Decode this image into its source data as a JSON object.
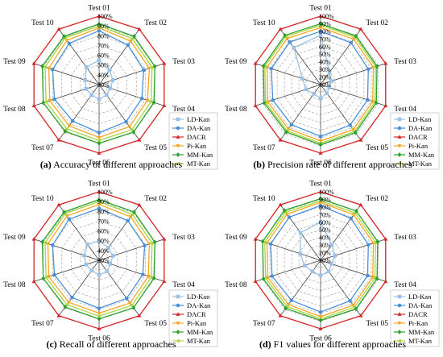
{
  "chart_data": [
    {
      "type": "radar",
      "panel": "a",
      "caption_letter": "(a)",
      "caption_text": " Accuracy of different approaches",
      "categories": [
        "Test 01",
        "Test 02",
        "Test 03",
        "Test 04",
        "Test 05",
        "Test 06",
        "Test 07",
        "Test 08",
        "Test 09",
        "Test 10"
      ],
      "ticks": [
        "30%",
        "40%",
        "50%",
        "60%",
        "70%",
        "80%",
        "90%",
        "100%"
      ],
      "range": [
        30,
        100
      ],
      "series": [
        {
          "name": "LD-Kan",
          "values": [
            55,
            48,
            45,
            42,
            43,
            45,
            43,
            44,
            45,
            52
          ]
        },
        {
          "name": "DA-Kan",
          "values": [
            85,
            80,
            78,
            76,
            77,
            79,
            76,
            78,
            80,
            82
          ]
        },
        {
          "name": "DACR",
          "values": [
            100,
            100,
            100,
            100,
            100,
            100,
            100,
            100,
            100,
            100
          ]
        },
        {
          "name": "Pi-Kan",
          "values": [
            88,
            85,
            84,
            82,
            83,
            84,
            82,
            83,
            84,
            86
          ]
        },
        {
          "name": "MM-Kan",
          "values": [
            92,
            91,
            90,
            89,
            90,
            90,
            89,
            90,
            91,
            91
          ]
        },
        {
          "name": "MT-Kan",
          "values": [
            90,
            88,
            87,
            86,
            87,
            87,
            86,
            87,
            88,
            89
          ]
        }
      ]
    },
    {
      "type": "radar",
      "panel": "b",
      "caption_letter": "(b)",
      "caption_text": " Precision rate of different approaches",
      "categories": [
        "Test 01",
        "Test 02",
        "Test 03",
        "Test 04",
        "Test 05",
        "Test 06",
        "Test 07",
        "Test 08",
        "Test 09",
        "Test 10"
      ],
      "ticks": [
        "10%",
        "20%",
        "30%",
        "40%",
        "50%",
        "60%",
        "70%",
        "80%",
        "90%",
        "100%"
      ],
      "range": [
        10,
        100
      ],
      "series": [
        {
          "name": "LD-Kan",
          "values": [
            75,
            30,
            25,
            22,
            24,
            28,
            25,
            30,
            35,
            70
          ]
        },
        {
          "name": "DA-Kan",
          "values": [
            80,
            78,
            76,
            75,
            76,
            78,
            75,
            76,
            78,
            79
          ]
        },
        {
          "name": "DACR",
          "values": [
            100,
            100,
            100,
            100,
            100,
            100,
            100,
            100,
            100,
            100
          ]
        },
        {
          "name": "Pi-Kan",
          "values": [
            85,
            84,
            83,
            82,
            83,
            84,
            82,
            83,
            84,
            85
          ]
        },
        {
          "name": "MM-Kan",
          "values": [
            90,
            89,
            88,
            87,
            88,
            89,
            87,
            88,
            89,
            90
          ]
        },
        {
          "name": "MT-Kan",
          "values": [
            88,
            87,
            86,
            85,
            86,
            87,
            85,
            86,
            87,
            88
          ]
        }
      ]
    },
    {
      "type": "radar",
      "panel": "c",
      "caption_letter": "(c)",
      "caption_text": " Recall of different approaches",
      "categories": [
        "Test 01",
        "Test 02",
        "Test 03",
        "Test 04",
        "Test 05",
        "Test 06",
        "Test 07",
        "Test 08",
        "Test 09",
        "Test 10"
      ],
      "ticks": [
        "30%",
        "40%",
        "50%",
        "60%",
        "70%",
        "80%",
        "90%",
        "100%"
      ],
      "range": [
        30,
        100
      ],
      "series": [
        {
          "name": "LD-Kan",
          "values": [
            50,
            46,
            45,
            42,
            44,
            45,
            43,
            44,
            46,
            50
          ]
        },
        {
          "name": "DA-Kan",
          "values": [
            83,
            80,
            79,
            77,
            78,
            79,
            77,
            78,
            80,
            82
          ]
        },
        {
          "name": "DACR",
          "values": [
            100,
            100,
            100,
            100,
            100,
            100,
            100,
            100,
            100,
            100
          ]
        },
        {
          "name": "Pi-Kan",
          "values": [
            87,
            85,
            84,
            83,
            84,
            84,
            83,
            84,
            85,
            86
          ]
        },
        {
          "name": "MM-Kan",
          "values": [
            92,
            91,
            90,
            89,
            90,
            90,
            89,
            90,
            91,
            91
          ]
        },
        {
          "name": "MT-Kan",
          "values": [
            90,
            88,
            87,
            86,
            87,
            87,
            86,
            87,
            88,
            89
          ]
        }
      ]
    },
    {
      "type": "radar",
      "panel": "d",
      "caption_letter": "(d)",
      "caption_text": " F1 values for different approaches",
      "categories": [
        "Test 01",
        "Test 02",
        "Test 03",
        "Test 04",
        "Test 05",
        "Test 06",
        "Test 07",
        "Test 08",
        "Test 09",
        "Test 10"
      ],
      "ticks": [
        "10%",
        "20%",
        "30%",
        "40%",
        "50%",
        "60%",
        "70%",
        "80%",
        "90%",
        "100%"
      ],
      "range": [
        10,
        100
      ],
      "series": [
        {
          "name": "LD-Kan",
          "values": [
            60,
            35,
            30,
            25,
            28,
            30,
            28,
            32,
            38,
            55
          ]
        },
        {
          "name": "DA-Kan",
          "values": [
            82,
            78,
            76,
            75,
            76,
            78,
            75,
            77,
            79,
            80
          ]
        },
        {
          "name": "DACR",
          "values": [
            100,
            100,
            100,
            100,
            100,
            100,
            100,
            100,
            100,
            100
          ]
        },
        {
          "name": "Pi-Kan",
          "values": [
            86,
            84,
            83,
            82,
            83,
            84,
            82,
            83,
            84,
            85
          ]
        },
        {
          "name": "MM-Kan",
          "values": [
            91,
            90,
            89,
            88,
            89,
            89,
            88,
            89,
            90,
            91
          ]
        },
        {
          "name": "MT-Kan",
          "values": [
            88,
            87,
            86,
            85,
            86,
            87,
            85,
            86,
            87,
            88
          ]
        }
      ]
    }
  ],
  "legend_style": [
    {
      "name": "LD-Kan",
      "color": "#9bc1e6",
      "marker": "square"
    },
    {
      "name": "DA-Kan",
      "color": "#4a90d9",
      "marker": "circle"
    },
    {
      "name": "DACR",
      "color": "#d62728",
      "marker": "triangle-up"
    },
    {
      "name": "Pi-Kan",
      "color": "#f5a623",
      "marker": "triangle-down"
    },
    {
      "name": "MM-Kan",
      "color": "#2ca02c",
      "marker": "diamond"
    },
    {
      "name": "MT-Kan",
      "color": "#a6d63c",
      "marker": "triangle-left"
    }
  ],
  "grid": true,
  "legend_placement": "bottom-right"
}
